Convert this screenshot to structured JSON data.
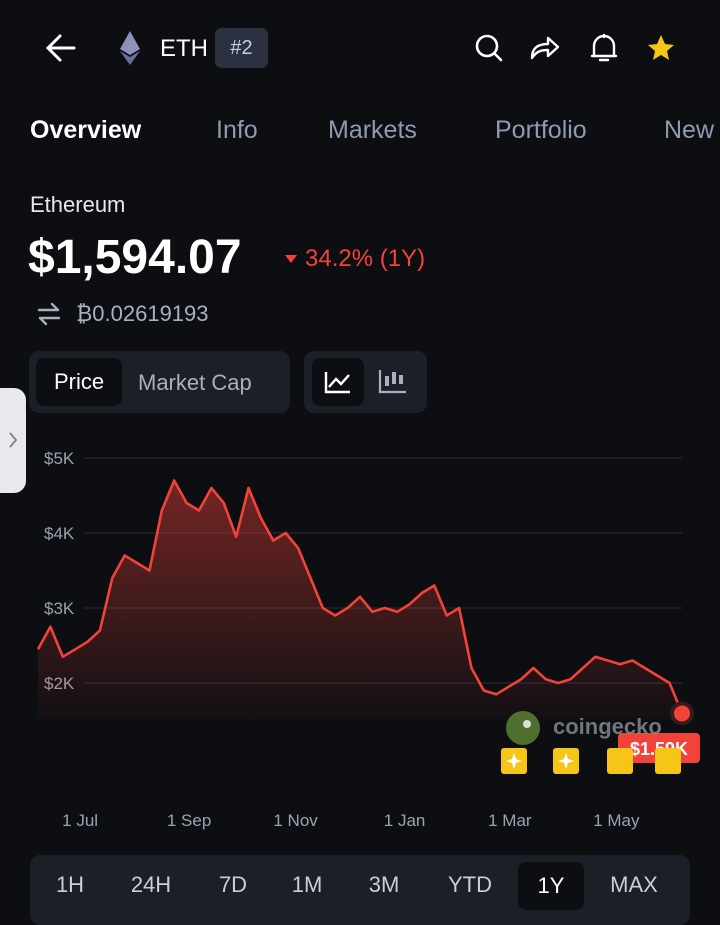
{
  "header": {
    "symbol": "ETH",
    "rank": "#2"
  },
  "tabs": [
    "Overview",
    "Info",
    "Markets",
    "Portfolio",
    "New"
  ],
  "coin_name": "Ethereum",
  "price": "$1,594.07",
  "change": "34.2% (1Y)",
  "btc_price": "₿0.02619193",
  "chart_toggle": [
    "Price",
    "Market Cap"
  ],
  "watermark": "coingecko",
  "chart_data": {
    "type": "line",
    "color": "#f2433a",
    "values": [
      2450,
      2750,
      2350,
      2450,
      2550,
      2700,
      3400,
      3700,
      3600,
      3500,
      4300,
      4700,
      4400,
      4300,
      4600,
      4400,
      3950,
      4600,
      4200,
      3900,
      4000,
      3800,
      3400,
      3000,
      2900,
      3000,
      3150,
      2950,
      3000,
      2950,
      3050,
      3200,
      3300,
      2900,
      3000,
      2200,
      1900,
      1850,
      1950,
      2050,
      2200,
      2050,
      2000,
      2050,
      2200,
      2350,
      2300,
      2250,
      2300,
      2200,
      2100,
      2000,
      1594
    ],
    "last_value_label": "$1.59K",
    "xlim": [
      0,
      52
    ],
    "xticks": [
      {
        "value": 3.4,
        "label": "1 Jul"
      },
      {
        "value": 12.2,
        "label": "1 Sep"
      },
      {
        "value": 20.8,
        "label": "1 Nov"
      },
      {
        "value": 29.6,
        "label": "1 Jan"
      },
      {
        "value": 38.1,
        "label": "1 Mar"
      },
      {
        "value": 46.7,
        "label": "1 May"
      }
    ],
    "ylim": [
      1500,
      5000
    ],
    "yticks": [
      {
        "value": 5000,
        "label": "$5K"
      },
      {
        "value": 4000,
        "label": "$4K"
      },
      {
        "value": 3000,
        "label": "$3K"
      },
      {
        "value": 2000,
        "label": "$2K"
      }
    ],
    "grid": true
  },
  "ranges": [
    "1H",
    "24H",
    "7D",
    "1M",
    "3M",
    "YTD",
    "1Y",
    "MAX"
  ],
  "selected_range": "1Y"
}
